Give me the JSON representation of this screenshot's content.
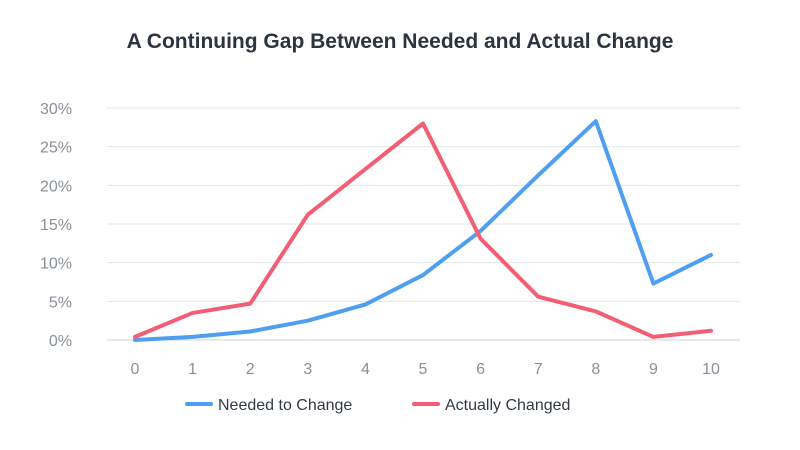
{
  "chart_data": {
    "type": "line",
    "title": "A Continuing Gap Between Needed and Actual Change",
    "xlabel": "",
    "ylabel": "",
    "x": [
      0,
      1,
      2,
      3,
      4,
      5,
      6,
      7,
      8,
      9,
      10
    ],
    "x_ticks": [
      "0",
      "1",
      "2",
      "3",
      "4",
      "5",
      "6",
      "7",
      "8",
      "9",
      "10"
    ],
    "ylim": [
      0,
      30
    ],
    "y_ticks": [
      "0%",
      "5%",
      "10%",
      "15%",
      "20%",
      "25%",
      "30%"
    ],
    "y_tick_values": [
      0,
      5,
      10,
      15,
      20,
      25,
      30
    ],
    "grid": "horizontal",
    "legend_position": "bottom",
    "series": [
      {
        "name": "Needed to Change",
        "color": "#4f9ff0",
        "values": [
          0.0,
          0.4,
          1.1,
          2.5,
          4.6,
          8.4,
          14.1,
          21.3,
          28.3,
          7.3,
          11.0
        ]
      },
      {
        "name": "Actually Changed",
        "color": "#f25f74",
        "values": [
          0.4,
          3.5,
          4.7,
          16.2,
          22.1,
          28.0,
          13.1,
          5.6,
          3.7,
          0.4,
          1.2
        ]
      }
    ]
  }
}
